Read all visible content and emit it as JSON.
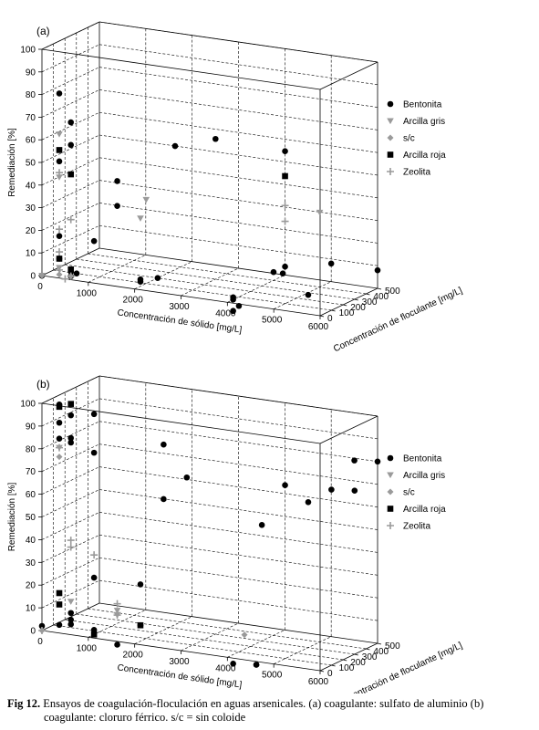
{
  "caption": {
    "label": "Fig 12.",
    "line1": "Ensayos de coagulación-floculación en aguas arsenicales. (a) coagulante: sulfato de aluminio (b)",
    "line2": "coagulante: cloruro férrico. s/c = sin coloide"
  },
  "chart_data": [
    {
      "type": "scatter3d",
      "panel_label": "(a)",
      "xlabel": "Concentración de sólido [mg/L]",
      "ylabel": "Concentración de floculante [mg/L]",
      "zlabel": "Remediación [%]",
      "xlim": [
        0,
        6000
      ],
      "ylim": [
        0,
        500
      ],
      "zlim": [
        0,
        100
      ],
      "xticks": [
        "0",
        "1000",
        "2000",
        "3000",
        "4000",
        "5000",
        "6000"
      ],
      "yticks": [
        "0",
        "100",
        "200",
        "300",
        "400",
        "500"
      ],
      "zticks": [
        "0",
        "10",
        "20",
        "30",
        "40",
        "50",
        "60",
        "70",
        "80",
        "90",
        "100"
      ],
      "grid": true,
      "legend_position": "right",
      "series": [
        {
          "name": "Bentonita",
          "marker": "circle",
          "points": [
            [
              250,
              50,
              80
            ],
            [
              250,
              50,
              50
            ],
            [
              250,
              50,
              17
            ],
            [
              250,
              50,
              7
            ],
            [
              500,
              50,
              68
            ],
            [
              500,
              50,
              58
            ],
            [
              500,
              50,
              0
            ],
            [
              500,
              50,
              2
            ],
            [
              1000,
              50,
              17
            ],
            [
              1500,
              50,
              45
            ],
            [
              1500,
              50,
              34
            ],
            [
              0,
              0,
              0
            ],
            [
              500,
              100,
              0
            ],
            [
              2000,
              50,
              2
            ],
            [
              2000,
              50,
              3
            ],
            [
              2500,
              150,
              61
            ],
            [
              2000,
              200,
              0
            ],
            [
              4000,
              50,
              0
            ],
            [
              4000,
              50,
              1
            ],
            [
              4000,
              50,
              -5
            ],
            [
              3000,
              300,
              62
            ],
            [
              4500,
              300,
              61
            ],
            [
              4500,
              300,
              10
            ],
            [
              4500,
              200,
              10
            ],
            [
              4700,
              200,
              10
            ],
            [
              5000,
              500,
              8
            ],
            [
              6000,
              500,
              8
            ],
            [
              5000,
              300,
              -1
            ],
            [
              4000,
              100,
              -4
            ]
          ]
        },
        {
          "name": "Arcilla gris",
          "marker": "triangle",
          "points": [
            [
              250,
              50,
              62
            ],
            [
              250,
              50,
              43
            ],
            [
              250,
              50,
              3
            ],
            [
              0,
              0,
              0
            ],
            [
              2000,
              100,
              37
            ],
            [
              2000,
              50,
              30
            ],
            [
              5000,
              400,
              33
            ]
          ]
        },
        {
          "name": "s/c",
          "marker": "diamond",
          "points": [
            [
              0,
              0,
              0
            ],
            [
              250,
              50,
              0
            ],
            [
              500,
              50,
              0
            ]
          ]
        },
        {
          "name": "Arcilla roja",
          "marker": "square",
          "points": [
            [
              250,
              50,
              55
            ],
            [
              500,
              50,
              45
            ],
            [
              500,
              50,
              3
            ],
            [
              250,
              50,
              7
            ],
            [
              4500,
              300,
              50
            ]
          ]
        },
        {
          "name": "Zeolita",
          "marker": "plus",
          "points": [
            [
              250,
              50,
              45
            ],
            [
              250,
              50,
              20
            ],
            [
              250,
              50,
              10
            ],
            [
              250,
              50,
              2
            ],
            [
              500,
              50,
              25
            ],
            [
              500,
              50,
              0
            ],
            [
              4500,
              300,
              37
            ],
            [
              4500,
              300,
              30
            ],
            [
              500,
              0,
              0
            ]
          ]
        }
      ]
    },
    {
      "type": "scatter3d",
      "panel_label": "(b)",
      "xlabel": "Concentración de sólido [mg/L]",
      "ylabel": "Concentración de floculante [mg/L]",
      "zlabel": "Remediación [%]",
      "xlim": [
        0,
        6000
      ],
      "ylim": [
        0,
        500
      ],
      "zlim": [
        0,
        100
      ],
      "xticks": [
        "0",
        "1000",
        "2000",
        "3000",
        "4000",
        "5000",
        "6000"
      ],
      "yticks": [
        "0",
        "100",
        "200",
        "300",
        "400",
        "500"
      ],
      "zticks": [
        "0",
        "10",
        "20",
        "30",
        "40",
        "50",
        "60",
        "70",
        "80",
        "90",
        "100"
      ],
      "grid": true,
      "legend_position": "right",
      "series": [
        {
          "name": "Bentonita",
          "marker": "circle",
          "points": [
            [
              250,
              50,
              99
            ],
            [
              250,
              50,
              91
            ],
            [
              250,
              50,
              84
            ],
            [
              250,
              50,
              2
            ],
            [
              500,
              50,
              85
            ],
            [
              500,
              50,
              83
            ],
            [
              500,
              50,
              95
            ],
            [
              1000,
              50,
              97
            ],
            [
              1000,
              50,
              80
            ],
            [
              500,
              50,
              8
            ],
            [
              500,
              50,
              5
            ],
            [
              500,
              50,
              3
            ],
            [
              1000,
              50,
              25
            ],
            [
              1000,
              50,
              2
            ],
            [
              0,
              0,
              2
            ],
            [
              1500,
              50,
              -3
            ],
            [
              2000,
              50,
              25
            ],
            [
              2000,
              50,
              7
            ],
            [
              2500,
              50,
              88
            ],
            [
              2500,
              50,
              64
            ],
            [
              3000,
              50,
              75
            ],
            [
              4500,
              300,
              70
            ],
            [
              5000,
              300,
              64
            ],
            [
              4000,
              300,
              51
            ],
            [
              5500,
              300,
              71
            ],
            [
              6000,
              300,
              72
            ],
            [
              5500,
              500,
              79
            ],
            [
              6000,
              500,
              80
            ],
            [
              4000,
              50,
              -4
            ],
            [
              4500,
              50,
              -3
            ],
            [
              4500,
              50,
              -3
            ]
          ]
        },
        {
          "name": "Arcilla gris",
          "marker": "triangle",
          "points": [
            [
              250,
              50,
              80
            ],
            [
              500,
              50,
              13
            ],
            [
              1500,
              50,
              12
            ],
            [
              1500,
              50,
              10
            ]
          ]
        },
        {
          "name": "s/c",
          "marker": "diamond",
          "points": [
            [
              0,
              0,
              0
            ],
            [
              3500,
              350,
              0
            ],
            [
              250,
              50,
              76
            ]
          ]
        },
        {
          "name": "Arcilla roja",
          "marker": "square",
          "points": [
            [
              250,
              50,
              98
            ],
            [
              500,
              50,
              100
            ],
            [
              250,
              50,
              16
            ],
            [
              250,
              50,
              11
            ],
            [
              1000,
              50,
              0
            ],
            [
              2000,
              50,
              7
            ]
          ]
        },
        {
          "name": "Zeolita",
          "marker": "plus",
          "points": [
            [
              250,
              50,
              80
            ],
            [
              500,
              50,
              40
            ],
            [
              500,
              50,
              37
            ],
            [
              1000,
              50,
              35
            ],
            [
              1500,
              50,
              15
            ],
            [
              1500,
              50,
              11
            ],
            [
              1500,
              50,
              10
            ],
            [
              0,
              0,
              0
            ]
          ]
        }
      ]
    }
  ]
}
